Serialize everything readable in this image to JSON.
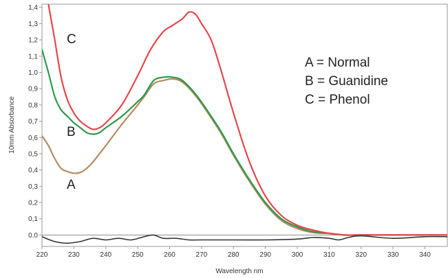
{
  "chart_data": {
    "type": "line",
    "xlabel": "Wavelength nm",
    "ylabel": "10mm Absorbance",
    "xlim": [
      220,
      347
    ],
    "ylim": [
      -0.07,
      1.42
    ],
    "x_ticks": [
      "220",
      "230",
      "240",
      "250",
      "260",
      "270",
      "280",
      "290",
      "300",
      "310",
      "320",
      "330",
      "340"
    ],
    "y_ticks": [
      "0.0",
      "0,1",
      "0,2",
      "0,3",
      "0,4",
      "0,5",
      "0,6",
      "0,7",
      "0,8",
      "0,9",
      "1,0",
      "1,1",
      "1,2",
      "1,3",
      "1,4"
    ],
    "legend": [
      "A = Normal",
      "B = Guanidine",
      "C = Phenol"
    ],
    "baseline_y": 0.0,
    "grid": false,
    "series": [
      {
        "label": "A",
        "color": "#b48a60",
        "x": [
          220,
          222,
          224,
          226,
          228,
          230,
          232,
          234,
          236,
          238,
          240,
          245,
          250,
          252,
          255,
          258,
          261,
          264,
          268,
          272,
          276,
          280,
          285,
          290,
          295,
          300,
          305,
          310,
          315,
          320,
          330,
          340,
          347
        ],
        "y": [
          0.61,
          0.55,
          0.47,
          0.41,
          0.39,
          0.38,
          0.385,
          0.41,
          0.45,
          0.5,
          0.55,
          0.68,
          0.8,
          0.85,
          0.93,
          0.95,
          0.96,
          0.94,
          0.86,
          0.75,
          0.63,
          0.49,
          0.33,
          0.19,
          0.09,
          0.04,
          0.015,
          0.01,
          0.0,
          0.0,
          0.0,
          0.0,
          0.0
        ]
      },
      {
        "label": "B",
        "color": "#2a9a4a",
        "x": [
          220,
          222,
          224,
          226,
          228,
          230,
          232,
          234,
          236,
          238,
          240,
          245,
          250,
          252,
          255,
          258,
          261,
          264,
          268,
          272,
          276,
          280,
          285,
          290,
          295,
          300,
          305,
          310,
          315,
          320,
          330,
          340,
          347
        ],
        "y": [
          1.14,
          1.0,
          0.85,
          0.77,
          0.73,
          0.69,
          0.66,
          0.63,
          0.62,
          0.63,
          0.66,
          0.73,
          0.82,
          0.86,
          0.95,
          0.97,
          0.97,
          0.95,
          0.87,
          0.76,
          0.64,
          0.5,
          0.34,
          0.2,
          0.1,
          0.05,
          0.02,
          0.01,
          0.0,
          0.0,
          0.0,
          0.0,
          0.0
        ]
      },
      {
        "label": "C",
        "color": "#e8454a",
        "x": [
          220,
          222,
          224,
          226,
          228,
          230,
          232,
          234,
          236,
          238,
          240,
          245,
          250,
          254,
          258,
          261,
          264,
          266,
          268,
          270,
          273,
          276,
          280,
          285,
          290,
          295,
          300,
          305,
          310,
          315,
          320,
          330,
          340,
          347
        ],
        "y": [
          1.62,
          1.42,
          1.2,
          0.97,
          0.83,
          0.75,
          0.7,
          0.67,
          0.65,
          0.66,
          0.69,
          0.8,
          0.98,
          1.14,
          1.25,
          1.29,
          1.33,
          1.37,
          1.36,
          1.3,
          1.2,
          1.02,
          0.75,
          0.45,
          0.24,
          0.12,
          0.06,
          0.03,
          0.01,
          0.0,
          0.0,
          0.0,
          0.0,
          0.0
        ]
      },
      {
        "label": "",
        "color": "#333333",
        "x": [
          220,
          224,
          228,
          232,
          236,
          240,
          244,
          248,
          252,
          255,
          258,
          262,
          266,
          270,
          280,
          290,
          300,
          305,
          310,
          313,
          316,
          320,
          330,
          340,
          347
        ],
        "y": [
          -0.01,
          -0.04,
          -0.05,
          -0.04,
          -0.02,
          -0.03,
          -0.02,
          -0.03,
          -0.01,
          0.0,
          -0.02,
          -0.02,
          -0.03,
          -0.03,
          -0.03,
          -0.03,
          -0.025,
          -0.015,
          -0.02,
          -0.03,
          -0.015,
          -0.005,
          -0.02,
          -0.01,
          -0.01
        ]
      }
    ]
  }
}
